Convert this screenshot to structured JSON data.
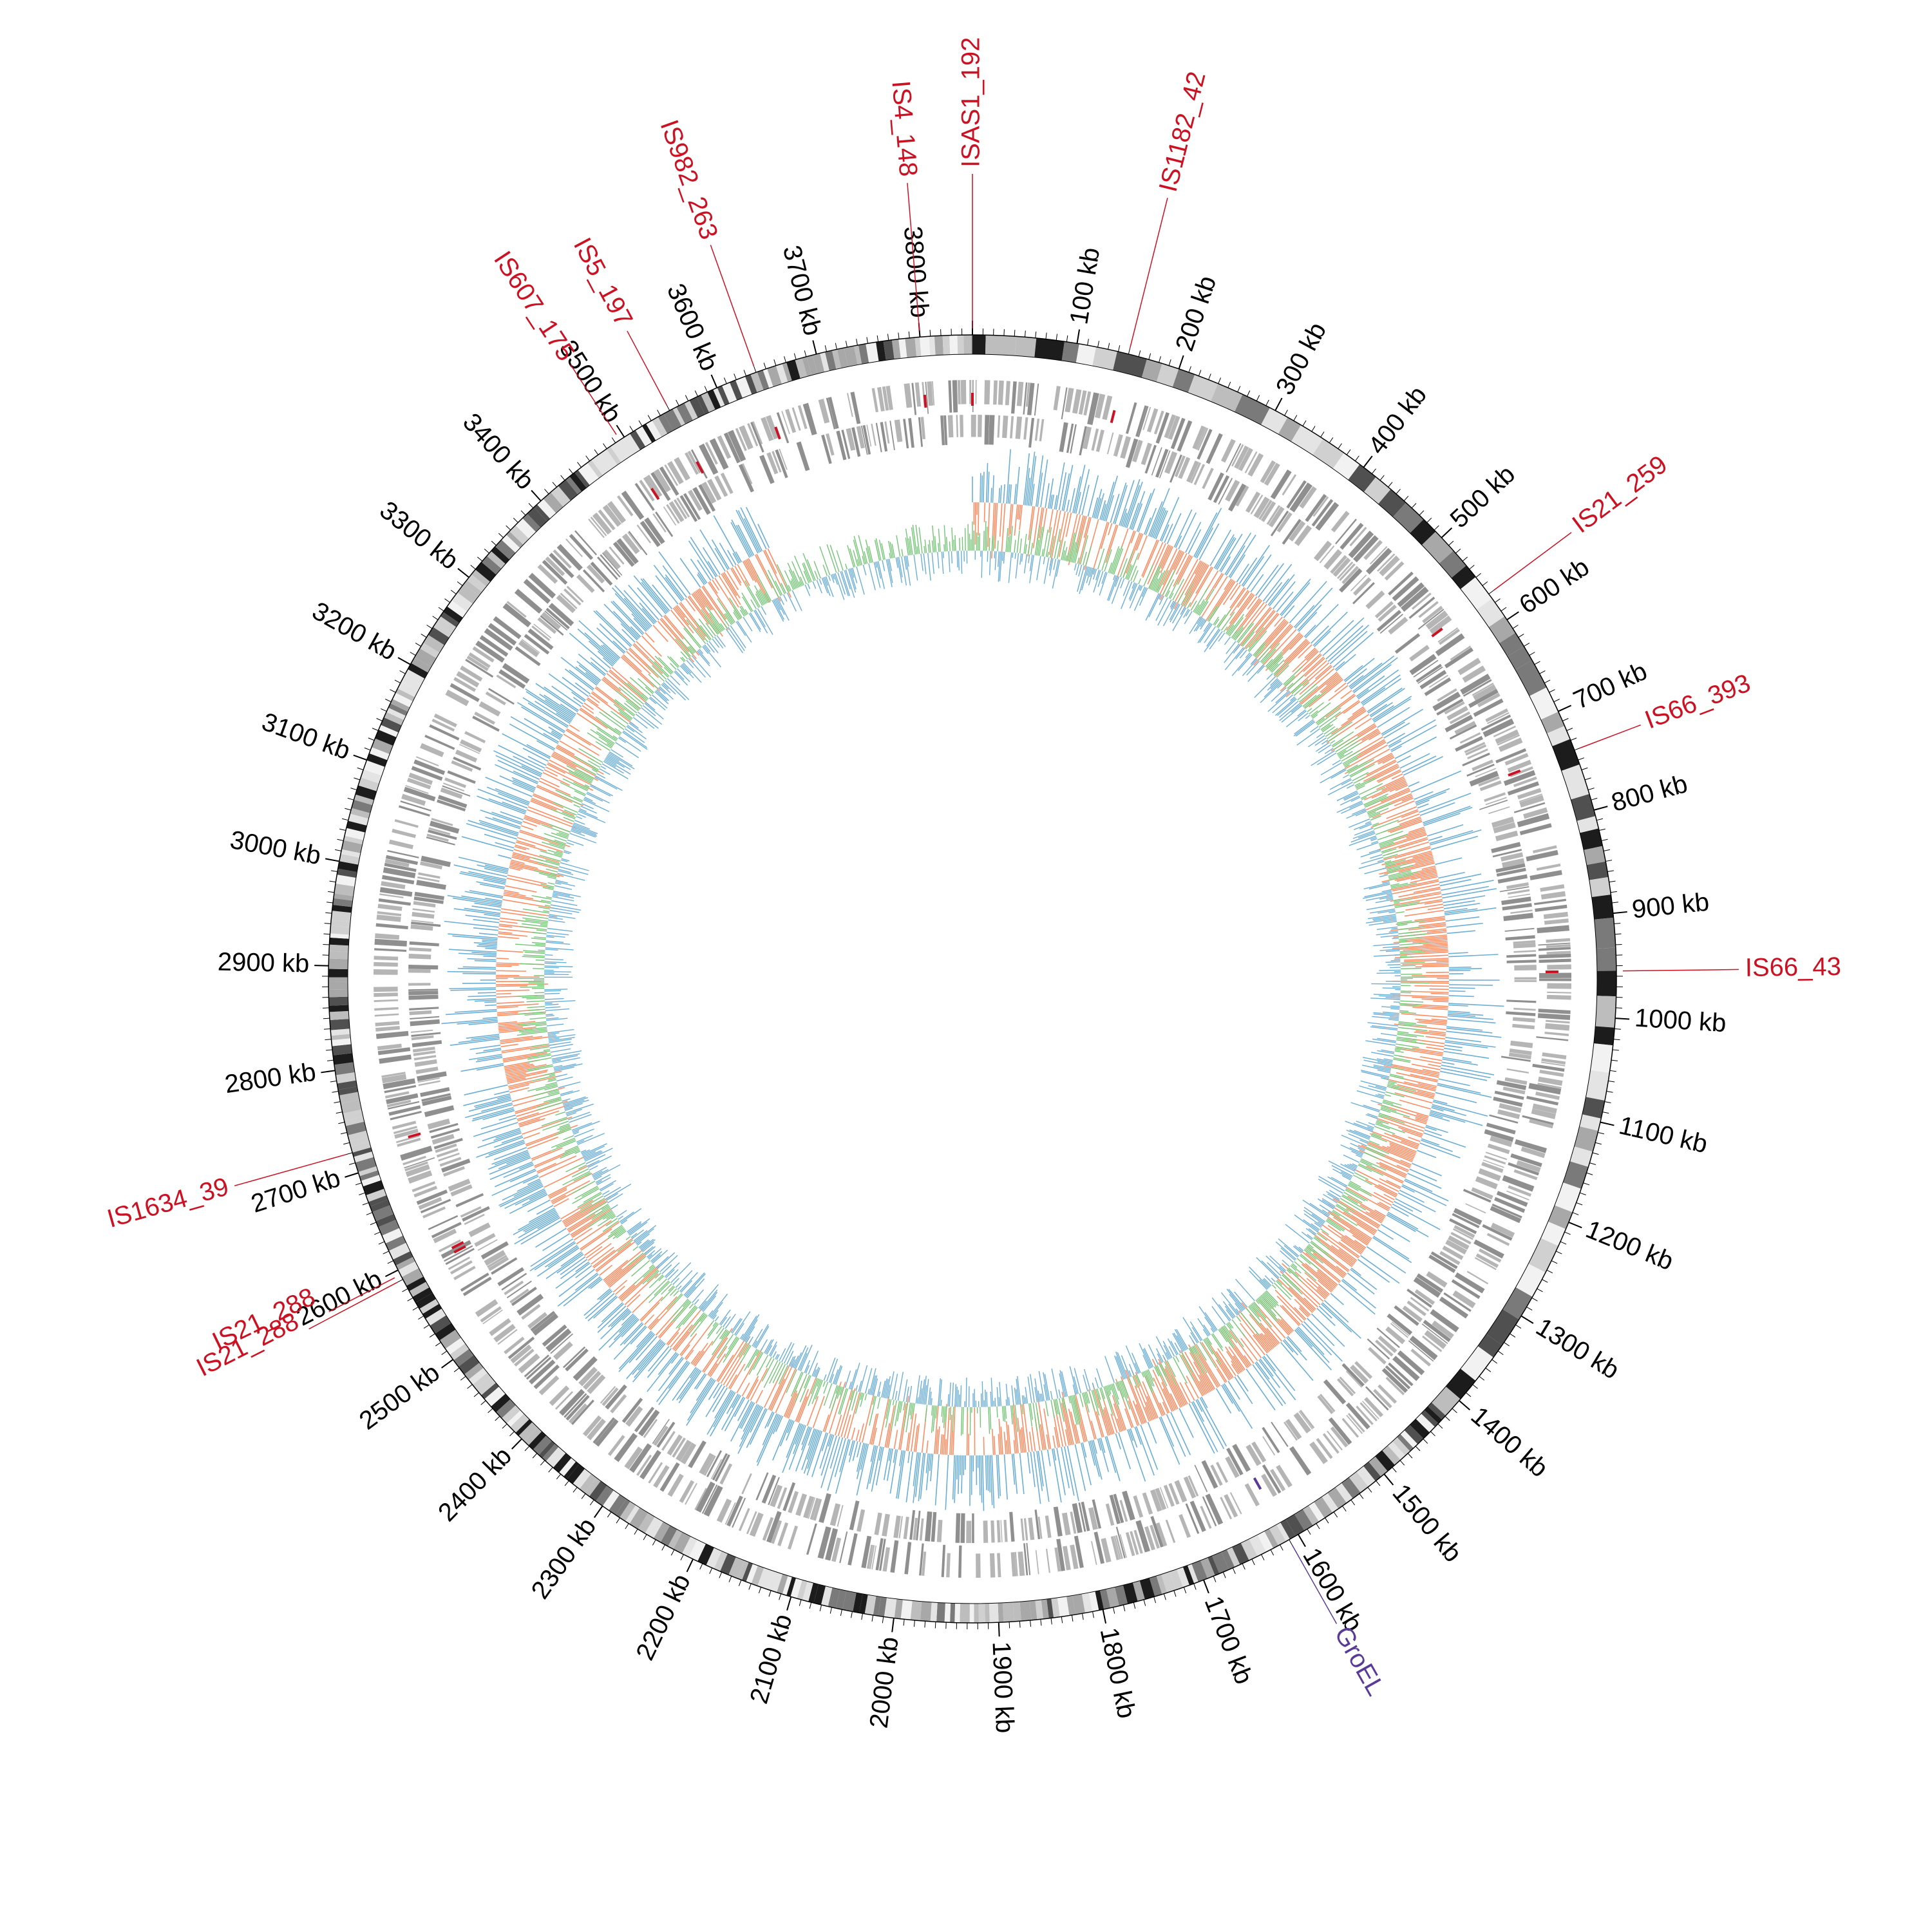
{
  "genome": {
    "total_kb": 3850,
    "tick_labels": [
      {
        "kb": 100,
        "label": "100 kb"
      },
      {
        "kb": 200,
        "label": "200 kb"
      },
      {
        "kb": 300,
        "label": "300 kb"
      },
      {
        "kb": 400,
        "label": "400 kb"
      },
      {
        "kb": 500,
        "label": "500 kb"
      },
      {
        "kb": 600,
        "label": "600 kb"
      },
      {
        "kb": 700,
        "label": "700 kb"
      },
      {
        "kb": 800,
        "label": "800 kb"
      },
      {
        "kb": 900,
        "label": "900 kb"
      },
      {
        "kb": 1000,
        "label": "1000 kb"
      },
      {
        "kb": 1100,
        "label": "1100 kb"
      },
      {
        "kb": 1200,
        "label": "1200 kb"
      },
      {
        "kb": 1300,
        "label": "1300 kb"
      },
      {
        "kb": 1400,
        "label": "1400 kb"
      },
      {
        "kb": 1500,
        "label": "1500 kb"
      },
      {
        "kb": 1600,
        "label": "1600 kb"
      },
      {
        "kb": 1700,
        "label": "1700 kb"
      },
      {
        "kb": 1800,
        "label": "1800 kb"
      },
      {
        "kb": 1900,
        "label": "1900 kb"
      },
      {
        "kb": 2000,
        "label": "2000 kb"
      },
      {
        "kb": 2100,
        "label": "2100 kb"
      },
      {
        "kb": 2200,
        "label": "2200 kb"
      },
      {
        "kb": 2300,
        "label": "2300 kb"
      },
      {
        "kb": 2400,
        "label": "2400 kb"
      },
      {
        "kb": 2500,
        "label": "2500 kb"
      },
      {
        "kb": 2600,
        "label": "2600 kb"
      },
      {
        "kb": 2700,
        "label": "2700 kb"
      },
      {
        "kb": 2800,
        "label": "2800 kb"
      },
      {
        "kb": 2900,
        "label": "2900 kb"
      },
      {
        "kb": 3000,
        "label": "3000 kb"
      },
      {
        "kb": 3100,
        "label": "3100 kb"
      },
      {
        "kb": 3200,
        "label": "3200 kb"
      },
      {
        "kb": 3300,
        "label": "3300 kb"
      },
      {
        "kb": 3400,
        "label": "3400 kb"
      },
      {
        "kb": 3500,
        "label": "3500 kb"
      },
      {
        "kb": 3600,
        "label": "3600 kb"
      },
      {
        "kb": 3700,
        "label": "3700 kb"
      },
      {
        "kb": 3800,
        "label": "3800 kb"
      }
    ]
  },
  "features": [
    {
      "label": "ISAS1_192",
      "kb": 0,
      "color": "#cc1122"
    },
    {
      "label": "IS1182_42",
      "kb": 150,
      "color": "#cc1122"
    },
    {
      "label": "IS21_259",
      "kb": 570,
      "color": "#cc1122"
    },
    {
      "label": "IS66_393",
      "kb": 740,
      "color": "#cc1122"
    },
    {
      "label": "IS66_43",
      "kb": 955,
      "color": "#cc1122"
    },
    {
      "label": "GroEL",
      "kb": 1610,
      "color": "#5a3a99"
    },
    {
      "label": "IS21_288",
      "kb": 2595,
      "color": "#cc1122"
    },
    {
      "label": "IS21_288",
      "kb": 2590,
      "color": "#cc1122"
    },
    {
      "label": "IS1634_39",
      "kb": 2720,
      "color": "#cc1122"
    },
    {
      "label": "IS607_175",
      "kb": 3495,
      "color": "#cc1122"
    },
    {
      "label": "IS5_197",
      "kb": 3550,
      "color": "#cc1122"
    },
    {
      "label": "IS982_263",
      "kb": 3640,
      "color": "#cc1122"
    },
    {
      "label": "IS4_148",
      "kb": 3800,
      "color": "#cc1122"
    }
  ],
  "colors": {
    "tick_text": "#000000",
    "is_element": "#cc1122",
    "groel": "#5a3a99",
    "cds_track": "#999999",
    "skew_positive": "#6baed6",
    "skew_negative": "#fc8d62",
    "gc_content_high": "#74c476",
    "gc_content_low": "#6baed6",
    "core_genes": "#0b3f86"
  }
}
